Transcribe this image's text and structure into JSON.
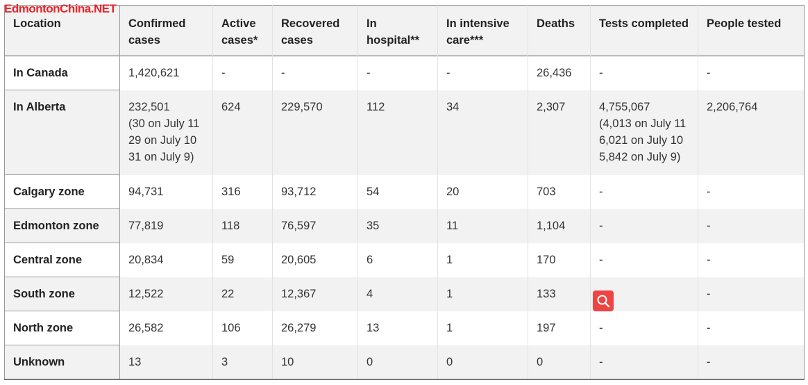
{
  "watermark": "EdmontonChina.NET",
  "table": {
    "headers": [
      "Location",
      "Confirmed cases",
      "Active cases*",
      "Recovered cases",
      "In hospital**",
      "In intensive care***",
      "Deaths",
      "Tests completed",
      "People tested"
    ],
    "rows": [
      [
        "In Canada",
        "1,420,621",
        "-",
        "-",
        "-",
        "-",
        "26,436",
        "-",
        "-"
      ],
      [
        "In Alberta",
        "232,501\n(30 on July 11\n29 on July 10\n31 on July 9)",
        "624",
        "229,570",
        "112",
        "34",
        "2,307",
        "4,755,067\n(4,013 on July 11\n6,021 on July 10\n5,842 on July 9)",
        "2,206,764"
      ],
      [
        "Calgary zone",
        "94,731",
        "316",
        "93,712",
        "54",
        "20",
        "703",
        "-",
        "-"
      ],
      [
        "Edmonton zone",
        "77,819",
        "118",
        "76,597",
        "35",
        "11",
        "1,104",
        "-",
        "-"
      ],
      [
        "Central zone",
        "20,834",
        "59",
        "20,605",
        "6",
        "1",
        "170",
        "-",
        "-"
      ],
      [
        "South zone",
        "12,522",
        "22",
        "12,367",
        "4",
        "1",
        "133",
        "-",
        "-"
      ],
      [
        "North zone",
        "26,582",
        "106",
        "26,279",
        "13",
        "1",
        "197",
        "-",
        "-"
      ],
      [
        "Unknown",
        "13",
        "3",
        "10",
        "0",
        "0",
        "0",
        "-",
        "-"
      ]
    ]
  },
  "search_button": {
    "icon": "search-icon",
    "color": "#ef4444"
  }
}
